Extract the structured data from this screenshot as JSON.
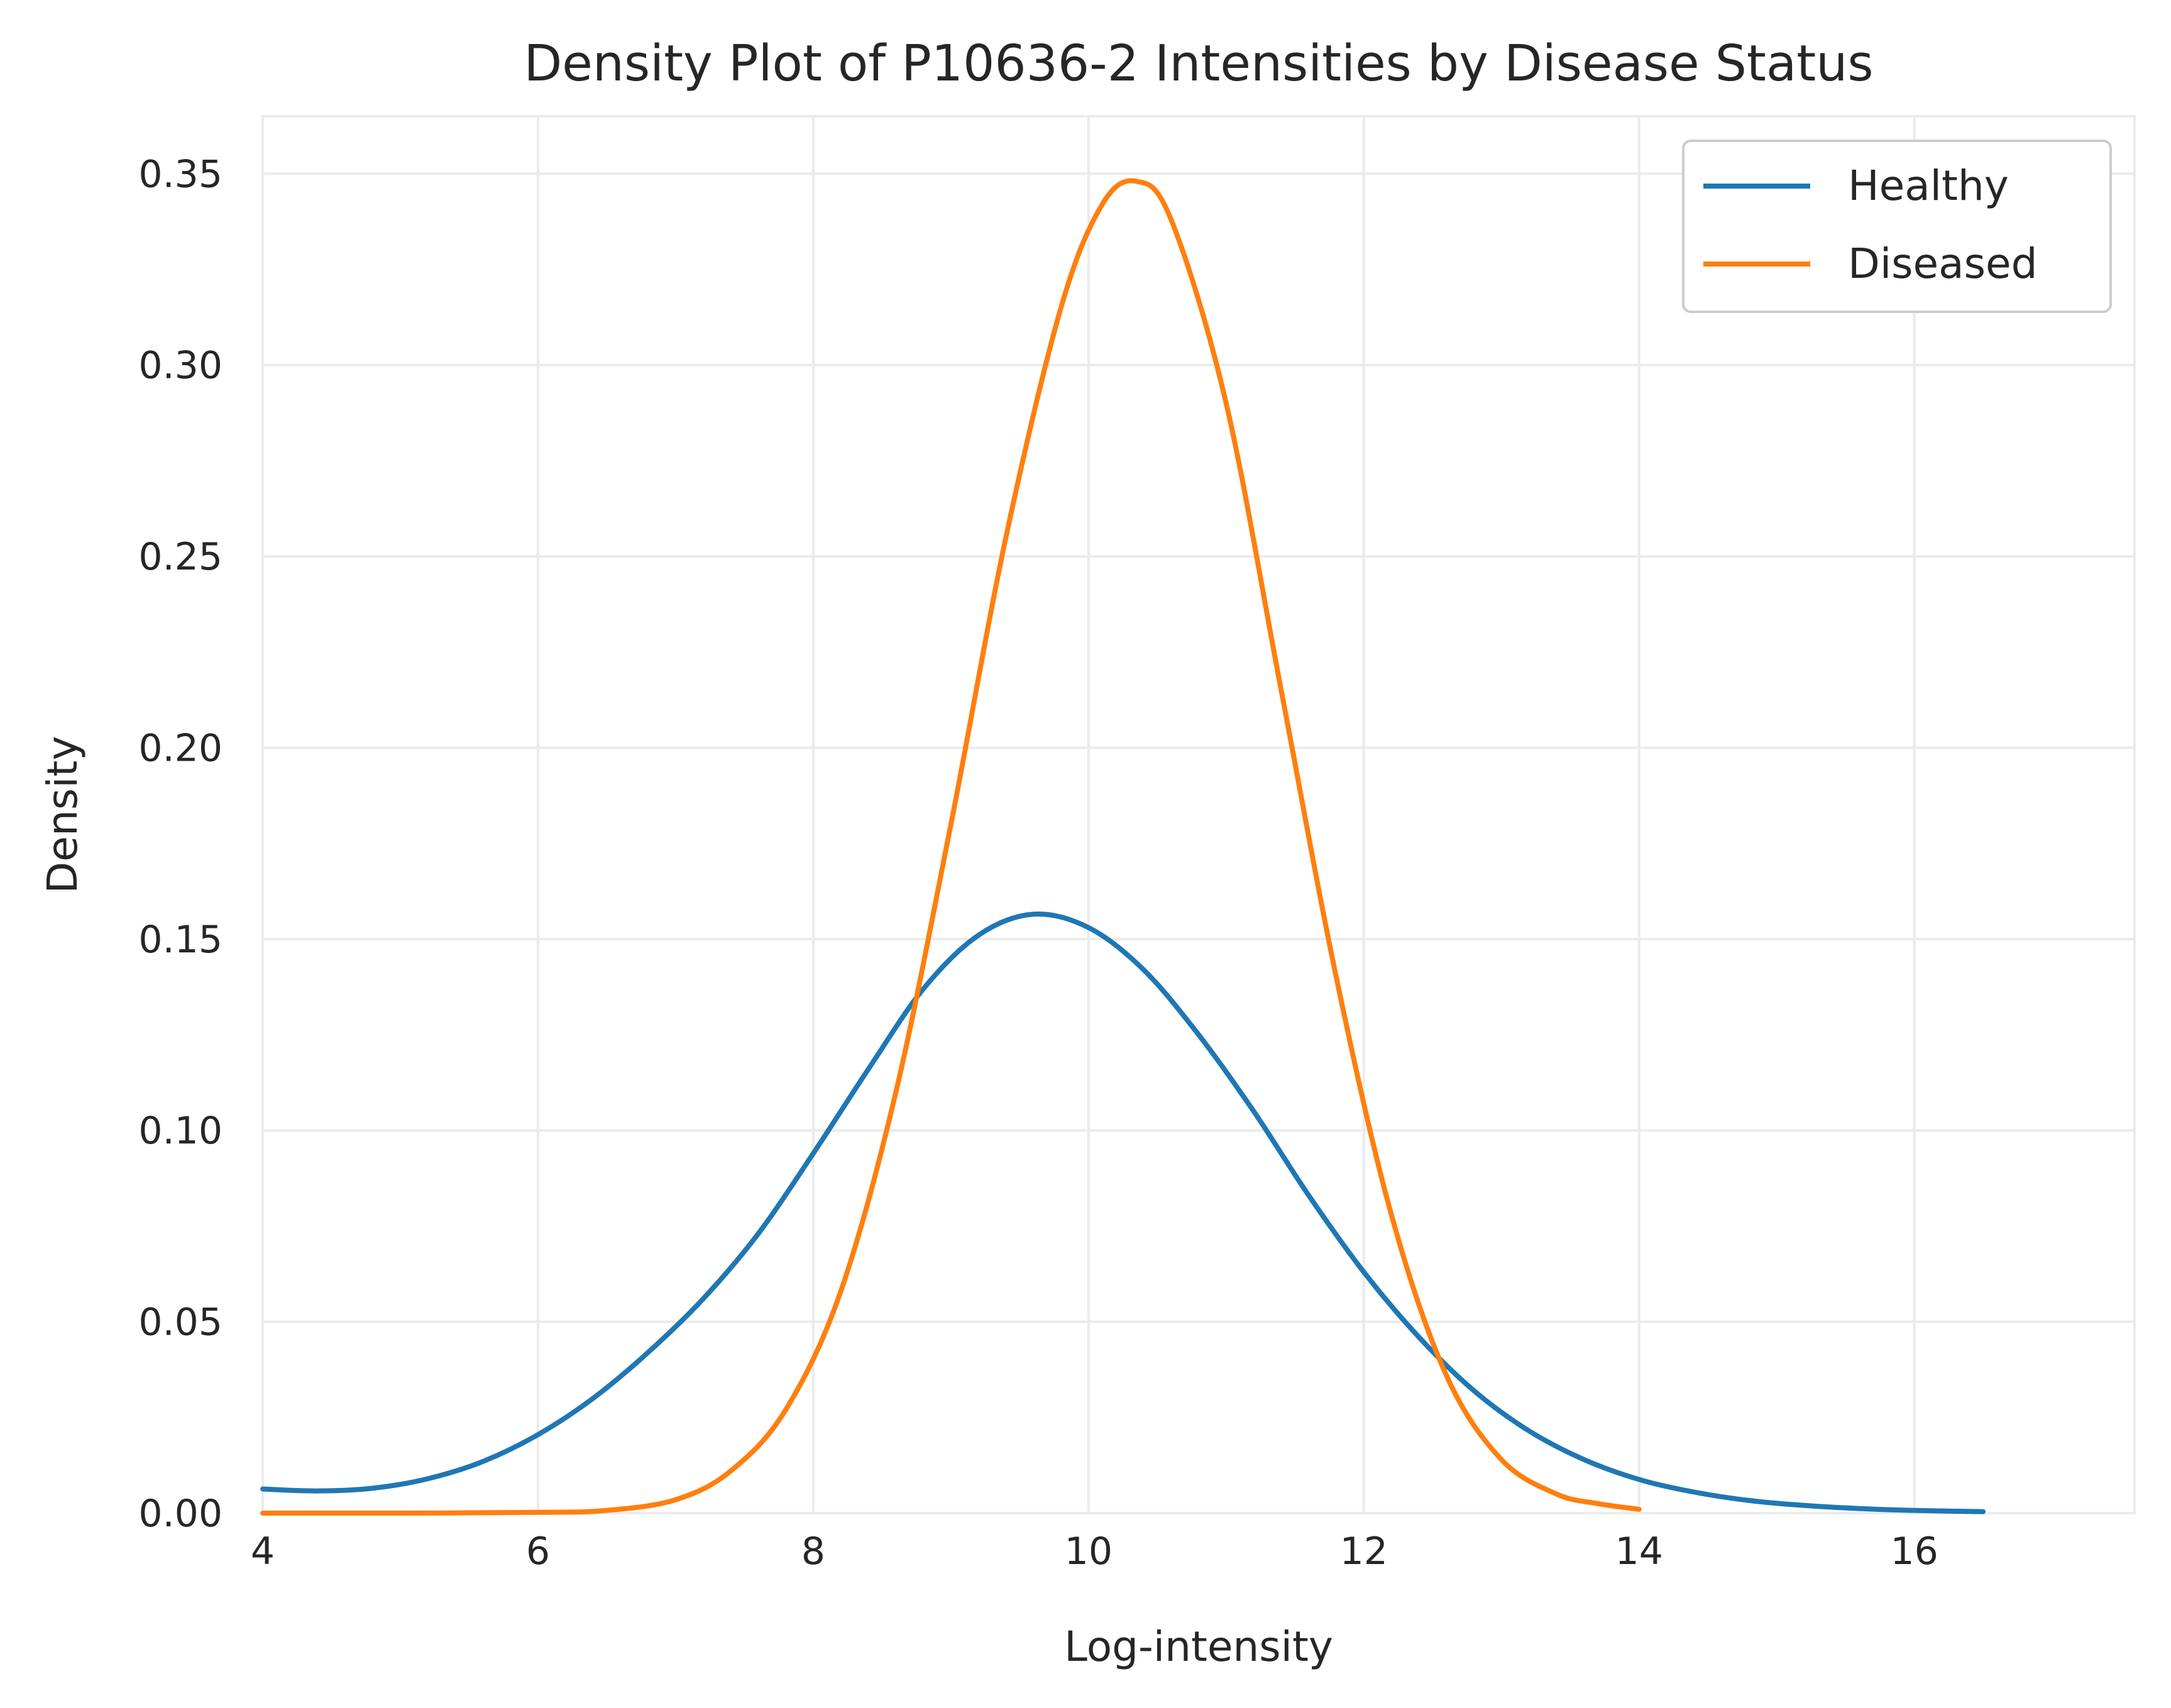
{
  "chart_data": {
    "type": "line",
    "title": "Density Plot of P10636-2 Intensities by Disease Status",
    "xlabel": "Log-intensity",
    "ylabel": "Density",
    "xlim": [
      4,
      17.6
    ],
    "ylim": [
      0,
      0.365
    ],
    "xticks": [
      "4",
      "6",
      "8",
      "10",
      "12",
      "14",
      "16"
    ],
    "xtick_values": [
      4,
      6,
      8,
      10,
      12,
      14,
      16
    ],
    "yticks": [
      "0.00",
      "0.05",
      "0.10",
      "0.15",
      "0.20",
      "0.25",
      "0.30",
      "0.35"
    ],
    "ytick_values": [
      0,
      0.05,
      0.1,
      0.15,
      0.2,
      0.25,
      0.3,
      0.35
    ],
    "grid": true,
    "legend_position": "top-right",
    "series": [
      {
        "name": "Healthy",
        "color": "#1f77b4",
        "points": [
          [
            4.0,
            0.0063
          ],
          [
            4.4,
            0.0058
          ],
          [
            4.8,
            0.0065
          ],
          [
            5.2,
            0.009
          ],
          [
            5.6,
            0.0135
          ],
          [
            6.0,
            0.0205
          ],
          [
            6.4,
            0.03
          ],
          [
            6.8,
            0.042
          ],
          [
            7.2,
            0.056
          ],
          [
            7.6,
            0.073
          ],
          [
            8.0,
            0.094
          ],
          [
            8.4,
            0.116
          ],
          [
            8.8,
            0.137
          ],
          [
            9.2,
            0.151
          ],
          [
            9.6,
            0.1565
          ],
          [
            10.0,
            0.153
          ],
          [
            10.4,
            0.142
          ],
          [
            10.8,
            0.125
          ],
          [
            11.2,
            0.105
          ],
          [
            11.6,
            0.083
          ],
          [
            12.0,
            0.063
          ],
          [
            12.4,
            0.046
          ],
          [
            12.8,
            0.032
          ],
          [
            13.2,
            0.0215
          ],
          [
            13.6,
            0.014
          ],
          [
            14.0,
            0.0088
          ],
          [
            14.4,
            0.0055
          ],
          [
            14.8,
            0.0033
          ],
          [
            15.2,
            0.002
          ],
          [
            15.6,
            0.0012
          ],
          [
            16.0,
            0.0007
          ],
          [
            16.5,
            0.0004
          ]
        ]
      },
      {
        "name": "Diseased",
        "color": "#ff7f0e",
        "points": [
          [
            4.0,
            0.0
          ],
          [
            5.0,
            0.0
          ],
          [
            6.0,
            0.0002
          ],
          [
            6.5,
            0.0007
          ],
          [
            7.0,
            0.0035
          ],
          [
            7.4,
            0.011
          ],
          [
            7.8,
            0.027
          ],
          [
            8.2,
            0.058
          ],
          [
            8.6,
            0.11
          ],
          [
            9.0,
            0.18
          ],
          [
            9.4,
            0.255
          ],
          [
            9.8,
            0.315
          ],
          [
            10.1,
            0.342
          ],
          [
            10.35,
            0.348
          ],
          [
            10.6,
            0.338
          ],
          [
            11.0,
            0.29
          ],
          [
            11.4,
            0.215
          ],
          [
            11.8,
            0.14
          ],
          [
            12.2,
            0.078
          ],
          [
            12.6,
            0.036
          ],
          [
            13.0,
            0.014
          ],
          [
            13.4,
            0.005
          ],
          [
            13.7,
            0.0025
          ],
          [
            14.0,
            0.001
          ]
        ]
      }
    ]
  }
}
